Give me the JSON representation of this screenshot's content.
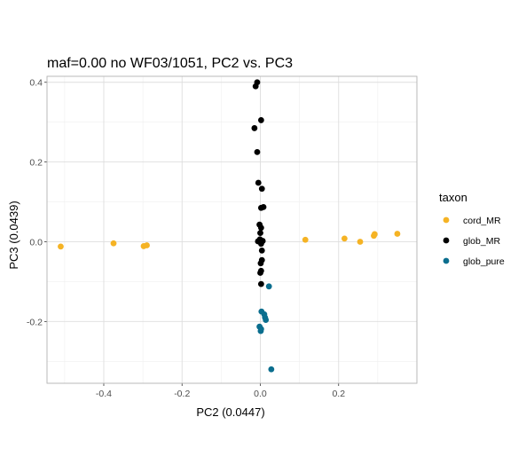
{
  "chart_data": {
    "type": "scatter",
    "title": "maf=0.00 no WF03/1051, PC2 vs. PC3",
    "xlabel": "PC2 (0.0447)",
    "ylabel": "PC3 (0.0439)",
    "xlim": [
      -0.545,
      0.4
    ],
    "ylim": [
      -0.355,
      0.415
    ],
    "x_ticks": [
      -0.4,
      -0.2,
      0.0,
      0.2
    ],
    "x_tick_labels": [
      "-0.4",
      "-0.2",
      "0.0",
      "0.2"
    ],
    "y_ticks": [
      -0.2,
      0.0,
      0.2,
      0.4
    ],
    "y_tick_labels": [
      "-0.2",
      "0.0",
      "0.2",
      "0.4"
    ],
    "grid": true,
    "legend": {
      "title": "taxon",
      "position": "right"
    },
    "series": [
      {
        "name": "cord_MR",
        "color": "#F5B324",
        "points": [
          {
            "x": -0.51,
            "y": -0.012
          },
          {
            "x": -0.375,
            "y": -0.004
          },
          {
            "x": -0.298,
            "y": -0.011
          },
          {
            "x": -0.29,
            "y": -0.009
          },
          {
            "x": 0.115,
            "y": 0.005
          },
          {
            "x": 0.215,
            "y": 0.008
          },
          {
            "x": 0.255,
            "y": 0.0
          },
          {
            "x": 0.29,
            "y": 0.015
          },
          {
            "x": 0.292,
            "y": 0.019
          },
          {
            "x": 0.35,
            "y": 0.02
          }
        ]
      },
      {
        "name": "glob_MR",
        "color": "#000000",
        "points": [
          {
            "x": -0.008,
            "y": 0.4
          },
          {
            "x": -0.012,
            "y": 0.39
          },
          {
            "x": 0.002,
            "y": 0.305
          },
          {
            "x": -0.015,
            "y": 0.285
          },
          {
            "x": -0.008,
            "y": 0.225
          },
          {
            "x": -0.005,
            "y": 0.148
          },
          {
            "x": 0.004,
            "y": 0.133
          },
          {
            "x": 0.008,
            "y": 0.087
          },
          {
            "x": 0.002,
            "y": 0.085
          },
          {
            "x": -0.002,
            "y": 0.043
          },
          {
            "x": 0.002,
            "y": 0.035
          },
          {
            "x": 0.0,
            "y": 0.022
          },
          {
            "x": -0.001,
            "y": 0.006
          },
          {
            "x": 0.006,
            "y": 0.002
          },
          {
            "x": -0.006,
            "y": 0.001
          },
          {
            "x": 0.002,
            "y": -0.005
          },
          {
            "x": 0.004,
            "y": -0.022
          },
          {
            "x": 0.004,
            "y": -0.046
          },
          {
            "x": 0.001,
            "y": -0.054
          },
          {
            "x": 0.002,
            "y": -0.073
          },
          {
            "x": 0.0,
            "y": -0.078
          },
          {
            "x": 0.002,
            "y": -0.106
          }
        ]
      },
      {
        "name": "glob_pure",
        "color": "#0B6E8E",
        "points": [
          {
            "x": 0.022,
            "y": -0.112
          },
          {
            "x": 0.003,
            "y": -0.175
          },
          {
            "x": 0.01,
            "y": -0.182
          },
          {
            "x": 0.012,
            "y": -0.19
          },
          {
            "x": 0.014,
            "y": -0.196
          },
          {
            "x": -0.002,
            "y": -0.213
          },
          {
            "x": 0.002,
            "y": -0.219
          },
          {
            "x": 0.001,
            "y": -0.224
          },
          {
            "x": 0.028,
            "y": -0.32
          }
        ]
      }
    ]
  }
}
